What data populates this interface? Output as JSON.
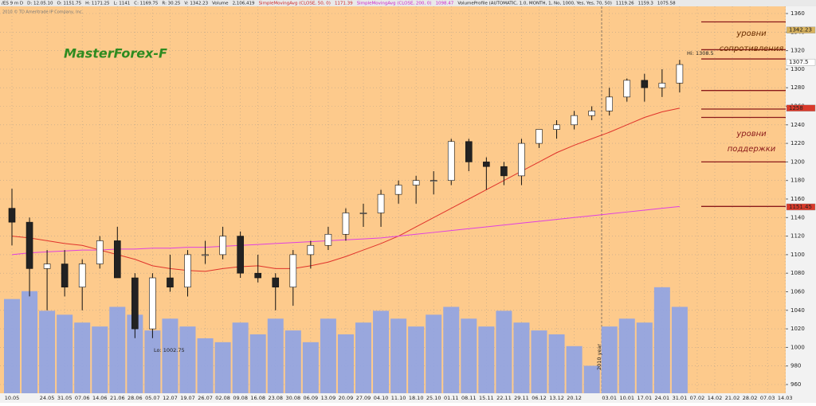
{
  "header": [
    "/ES 9 m D",
    "D: 12.05.10",
    "O: 1151.75",
    "H: 1171.25",
    "L: 1141",
    "C: 1169.75",
    "R: 30.25",
    "V: 1342.23",
    "Volume",
    "2,106,419",
    "SimpleMovingAvg (CLOSE, 50, 0)",
    "1171.39",
    "SimpleMovingAvg (CLOSE, 200, 0)",
    "1098.47",
    "VolumeProfile (AUTOMATIC, 1.0, MONTH, 1, No, 1000, Yes, Yes, 70, 50)",
    "1119.26",
    "1159.3",
    "1075.58"
  ],
  "copyright": "2010 © TD Ameritrade IP Company, Inc.",
  "chart_data": {
    "type": "candlestick",
    "categories": [
      "10.05",
      null,
      "24.05",
      "31.05",
      "07.06",
      "14.06",
      "21.06",
      "28.06",
      "05.07",
      "12.07",
      "19.07",
      "26.07",
      "02.08",
      "09.08",
      "16.08",
      "23.08",
      "30.08",
      "06.09",
      "13.09",
      "20.09",
      "27.09",
      "04.10",
      "11.10",
      "18.10",
      "25.10",
      "01.11",
      "08.11",
      "15.11",
      "22.11",
      "29.11",
      "06.12",
      "13.12",
      "20.12",
      null,
      "03.01",
      "10.01",
      "17.01",
      "24.01",
      "31.01",
      "07.02",
      "14.02",
      "21.02",
      "28.02",
      "07.03",
      "14.03"
    ],
    "open": [
      1150,
      1135,
      1085,
      1090,
      1065,
      1090,
      1115,
      1075,
      1020,
      1075,
      1065,
      1100,
      1100,
      1120,
      1080,
      1075,
      1065,
      1100,
      1110,
      1122,
      1145,
      1145,
      1165,
      1175,
      1180,
      1180,
      1222,
      1200,
      1195,
      1185,
      1220,
      1235,
      1240,
      1250,
      1255,
      1270,
      1288,
      1280,
      1285,
      null,
      null,
      null,
      null,
      null,
      null
    ],
    "high": [
      1171,
      1140,
      1105,
      1105,
      1095,
      1120,
      1130,
      1080,
      1080,
      1100,
      1105,
      1115,
      1130,
      1125,
      1100,
      1080,
      1105,
      1115,
      1130,
      1150,
      1155,
      1170,
      1180,
      1185,
      1190,
      1225,
      1225,
      1205,
      1200,
      1225,
      1235,
      1245,
      1255,
      1260,
      1280,
      1290,
      1295,
      1300,
      1310,
      null,
      null,
      null,
      null,
      null,
      null
    ],
    "low": [
      1110,
      1055,
      1040,
      1055,
      1040,
      1085,
      1075,
      1010,
      1010,
      1060,
      1055,
      1090,
      1095,
      1075,
      1070,
      1040,
      1045,
      1085,
      1105,
      1115,
      1130,
      1130,
      1155,
      1155,
      1165,
      1175,
      1190,
      1170,
      1175,
      1175,
      1215,
      1225,
      1235,
      1245,
      1250,
      1265,
      1265,
      1270,
      1275,
      null,
      null,
      null,
      null,
      null,
      null
    ],
    "close": [
      1135,
      1085,
      1090,
      1065,
      1090,
      1115,
      1075,
      1020,
      1075,
      1065,
      1100,
      1100,
      1120,
      1080,
      1075,
      1065,
      1100,
      1110,
      1122,
      1145,
      1145,
      1165,
      1175,
      1180,
      1180,
      1222,
      1200,
      1195,
      1185,
      1220,
      1235,
      1240,
      1250,
      1255,
      1270,
      1288,
      1280,
      1285,
      1305,
      null,
      null,
      null,
      null,
      null,
      null
    ],
    "volume": [
      2400,
      2600,
      2100,
      2000,
      1800,
      1700,
      2200,
      2000,
      1600,
      1900,
      1700,
      1400,
      1300,
      1800,
      1500,
      1900,
      1600,
      1300,
      1900,
      1500,
      1800,
      2100,
      1900,
      1700,
      2000,
      2200,
      1900,
      1700,
      2100,
      1800,
      1600,
      1500,
      1200,
      700,
      1700,
      1900,
      1800,
      2700,
      2200,
      null,
      null,
      null,
      null,
      null,
      null
    ],
    "vlim": [
      0,
      3000
    ],
    "volume_color": "#8ea3e6",
    "series": [
      {
        "name": "SimpleMovingAvg (CLOSE, 50, 0)",
        "color": "#e0332b",
        "values": [
          1120,
          1118,
          1115,
          1112,
          1110,
          1105,
          1100,
          1095,
          1088,
          1085,
          1083,
          1082,
          1085,
          1087,
          1088,
          1085,
          1085,
          1088,
          1092,
          1098,
          1105,
          1112,
          1120,
          1130,
          1140,
          1150,
          1160,
          1170,
          1180,
          1190,
          1200,
          1210,
          1218,
          1225,
          1232,
          1240,
          1248,
          1254,
          1258,
          null,
          null,
          null,
          null,
          null,
          null
        ]
      },
      {
        "name": "SimpleMovingAvg (CLOSE, 200, 0)",
        "color": "#e040e0",
        "values": [
          1100,
          1102,
          1103,
          1104,
          1105,
          1105,
          1106,
          1106,
          1107,
          1107,
          1108,
          1108,
          1109,
          1110,
          1111,
          1112,
          1113,
          1114,
          1115,
          1116,
          1117,
          1118,
          1120,
          1122,
          1124,
          1126,
          1128,
          1130,
          1132,
          1134,
          1136,
          1138,
          1140,
          1142,
          1144,
          1146,
          1148,
          1150,
          1152,
          null,
          null,
          null,
          null,
          null,
          null
        ]
      }
    ],
    "ylim": [
      960,
      1360
    ],
    "yticks": [
      960,
      980,
      1000,
      1020,
      1040,
      1060,
      1080,
      1100,
      1120,
      1140,
      1160,
      1180,
      1200,
      1220,
      1240,
      1260,
      1280,
      1300,
      1320,
      1340,
      1360
    ],
    "grid": true,
    "levels": [
      1351,
      1321,
      1311,
      1277,
      1257,
      1248,
      1200,
      1152
    ],
    "price_tags": [
      {
        "value": 1342.23,
        "color": "#d9b35e"
      },
      {
        "value": 1307.5,
        "color": "#ffffff"
      },
      {
        "value": 1258,
        "color": "#d93a2b"
      },
      {
        "value": 1151.45,
        "color": "#d93a2b"
      }
    ],
    "title": "MasterForex-F",
    "annotations": [
      "уровни",
      "сопротивления",
      "уровни",
      "поддержки",
      "Hi: 1308.5",
      "Lo: 1002.75",
      "2010 year"
    ]
  }
}
